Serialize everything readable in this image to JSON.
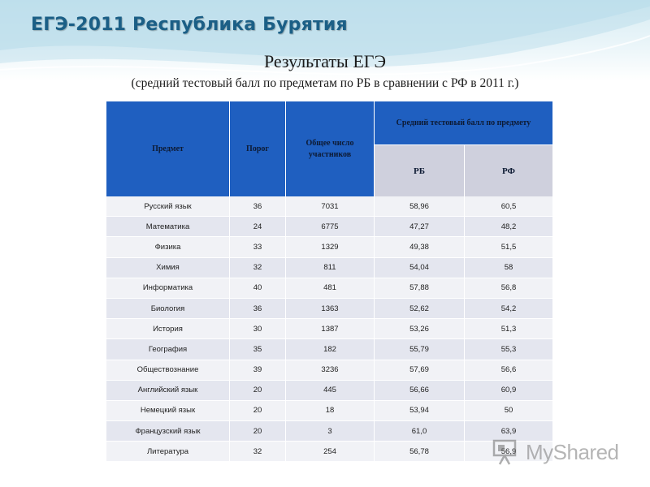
{
  "slide": {
    "title": "ЕГЭ-2011 Республика Бурятия",
    "heading": "Результаты ЕГЭ",
    "subheading": "(средний тестовый балл по предметам по РБ в сравнении с РФ в 2011 г.)"
  },
  "table": {
    "headers": {
      "subject": "Предмет",
      "threshold": "Порог",
      "participants": "Общее число участников",
      "avg_group": "Средний тестовый балл по предмету",
      "rb": "РБ",
      "rf": "РФ"
    },
    "rows": [
      {
        "subject": "Русский язык",
        "threshold": "36",
        "participants": "7031",
        "rb": "58,96",
        "rf": "60,5"
      },
      {
        "subject": "Математика",
        "threshold": "24",
        "participants": "6775",
        "rb": "47,27",
        "rf": "48,2"
      },
      {
        "subject": "Физика",
        "threshold": "33",
        "participants": "1329",
        "rb": "49,38",
        "rf": "51,5"
      },
      {
        "subject": "Химия",
        "threshold": "32",
        "participants": "811",
        "rb": "54,04",
        "rf": "58"
      },
      {
        "subject": "Информатика",
        "threshold": "40",
        "participants": "481",
        "rb": "57,88",
        "rf": "56,8"
      },
      {
        "subject": "Биология",
        "threshold": "36",
        "participants": "1363",
        "rb": "52,62",
        "rf": "54,2"
      },
      {
        "subject": "История",
        "threshold": "30",
        "participants": "1387",
        "rb": "53,26",
        "rf": "51,3"
      },
      {
        "subject": "География",
        "threshold": "35",
        "participants": "182",
        "rb": "55,79",
        "rf": "55,3"
      },
      {
        "subject": "Обществознание",
        "threshold": "39",
        "participants": "3236",
        "rb": "57,69",
        "rf": "56,6"
      },
      {
        "subject": "Английский язык",
        "threshold": "20",
        "participants": "445",
        "rb": "56,66",
        "rf": "60,9"
      },
      {
        "subject": "Немецкий язык",
        "threshold": "20",
        "participants": "18",
        "rb": "53,94",
        "rf": "50"
      },
      {
        "subject": "Французский язык",
        "threshold": "20",
        "participants": "3",
        "rb": "61,0",
        "rf": "63,9"
      },
      {
        "subject": "Литература",
        "threshold": "32",
        "participants": "254",
        "rb": "56,78",
        "rf": "56,9"
      }
    ]
  },
  "watermark": {
    "text": "MyShared",
    "icon": "presentation-board-icon"
  },
  "colors": {
    "header_blue": "#1f5fc0",
    "subheader_gray": "#cfd0dd",
    "title_blue": "#1b5f86",
    "row_odd": "#e4e6ef",
    "row_even": "#f1f2f6"
  }
}
